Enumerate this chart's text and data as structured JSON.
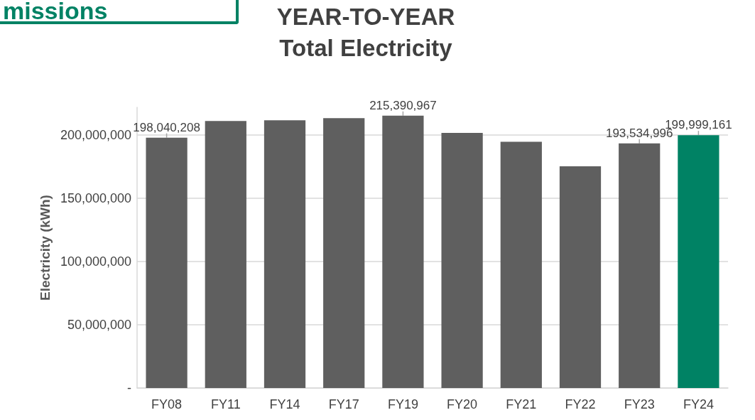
{
  "chart_data": {
    "type": "bar",
    "title": "YEAR-TO-YEAR\nTotal Electricity",
    "ylabel": "Electricity (kWh)",
    "annotations": [
      "missions"
    ],
    "categories": [
      "FY08",
      "FY11",
      "FY14",
      "FY17",
      "FY19",
      "FY20",
      "FY21",
      "FY22",
      "FY23",
      "FY24"
    ],
    "values": [
      198040208,
      211200000,
      211800000,
      213400000,
      215390967,
      201700000,
      194800000,
      175300000,
      193534996,
      199999161
    ],
    "colors": [
      "#5f5f5f",
      "#5f5f5f",
      "#5f5f5f",
      "#5f5f5f",
      "#5f5f5f",
      "#5f5f5f",
      "#5f5f5f",
      "#5f5f5f",
      "#5f5f5f",
      "#008264"
    ],
    "value_labels": [
      "198,040,208",
      null,
      null,
      null,
      "215,390,967",
      null,
      null,
      null,
      "193,534,996",
      "199,999,161"
    ],
    "ylim": [
      0,
      222000000
    ],
    "yticks": [
      {
        "value": 0,
        "label": "-"
      },
      {
        "value": 50000000,
        "label": "50,000,000"
      },
      {
        "value": 100000000,
        "label": "100,000,000"
      },
      {
        "value": 150000000,
        "label": "150,000,000"
      },
      {
        "value": 200000000,
        "label": "200,000,000"
      }
    ],
    "grid": "y"
  }
}
